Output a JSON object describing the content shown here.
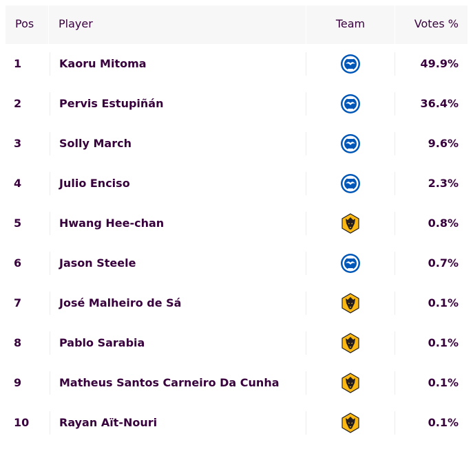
{
  "header": {
    "pos": "Pos",
    "player": "Player",
    "team": "Team",
    "votes": "Votes %"
  },
  "rows": [
    {
      "pos": "1",
      "player": "Kaoru Mitoma",
      "team_icon": "brighton-crest-icon",
      "votes": "49.9%"
    },
    {
      "pos": "2",
      "player": "Pervis Estupiñán",
      "team_icon": "brighton-crest-icon",
      "votes": "36.4%"
    },
    {
      "pos": "3",
      "player": "Solly March",
      "team_icon": "brighton-crest-icon",
      "votes": "9.6%"
    },
    {
      "pos": "4",
      "player": "Julio Enciso",
      "team_icon": "brighton-crest-icon",
      "votes": "2.3%"
    },
    {
      "pos": "5",
      "player": "Hwang Hee-chan",
      "team_icon": "wolves-crest-icon",
      "votes": "0.8%"
    },
    {
      "pos": "6",
      "player": "Jason Steele",
      "team_icon": "brighton-crest-icon",
      "votes": "0.7%"
    },
    {
      "pos": "7",
      "player": "José Malheiro de Sá",
      "team_icon": "wolves-crest-icon",
      "votes": "0.1%"
    },
    {
      "pos": "8",
      "player": "Pablo Sarabia",
      "team_icon": "wolves-crest-icon",
      "votes": "0.1%"
    },
    {
      "pos": "9",
      "player": "Matheus Santos Carneiro Da Cunha",
      "team_icon": "wolves-crest-icon",
      "votes": "0.1%"
    },
    {
      "pos": "10",
      "player": "Rayan Aït-Nouri",
      "team_icon": "wolves-crest-icon",
      "votes": "0.1%"
    }
  ],
  "colors": {
    "text": "#37003c",
    "header_bg": "#f7f7f8",
    "brighton_blue": "#0057b8",
    "wolves_gold": "#fdb913"
  }
}
